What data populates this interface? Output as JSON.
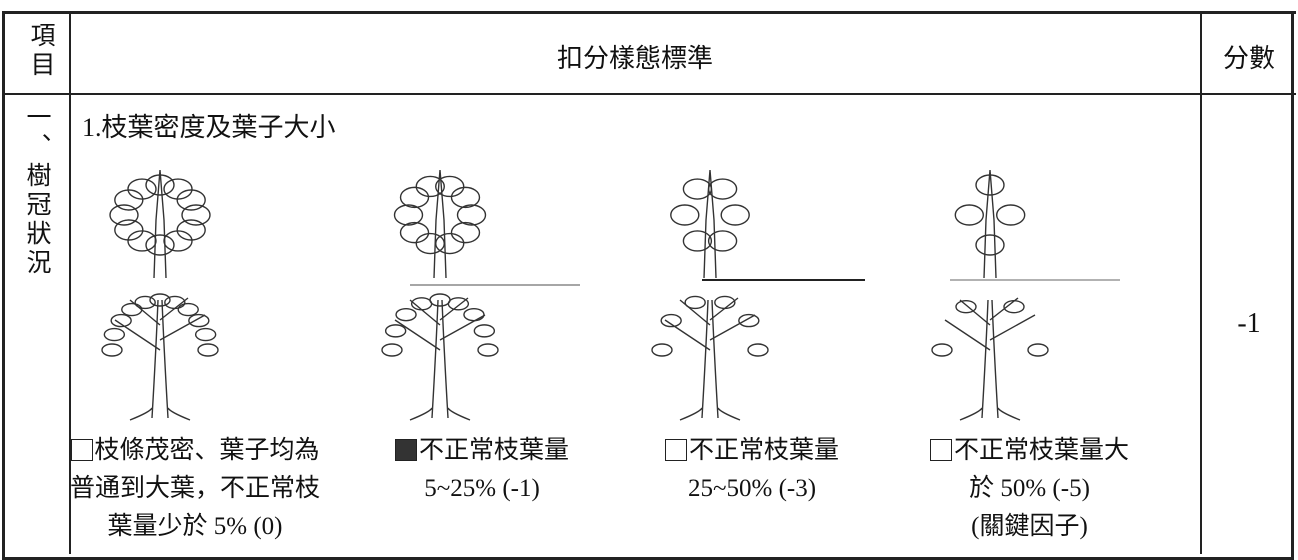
{
  "table": {
    "header": {
      "item": "項目",
      "criteria": "扣分樣態標準",
      "score": "分數"
    },
    "row": {
      "item": "一、樹冠狀況",
      "subtitle": "1.枝葉密度及葉子大小",
      "score": "-1",
      "options": [
        {
          "checked": false,
          "lines": [
            "枝條茂密、葉子均為",
            "普通到大葉，不正常枝",
            "葉量少於 5% (0)"
          ]
        },
        {
          "checked": true,
          "lines": [
            "不正常枝葉量",
            "5~25% (-1)"
          ]
        },
        {
          "checked": false,
          "lines": [
            "不正常枝葉量",
            "25~50% (-3)"
          ]
        },
        {
          "checked": false,
          "lines": [
            "不正常枝葉量大",
            "於 50% (-5)",
            "(關鍵因子)"
          ]
        }
      ]
    }
  }
}
